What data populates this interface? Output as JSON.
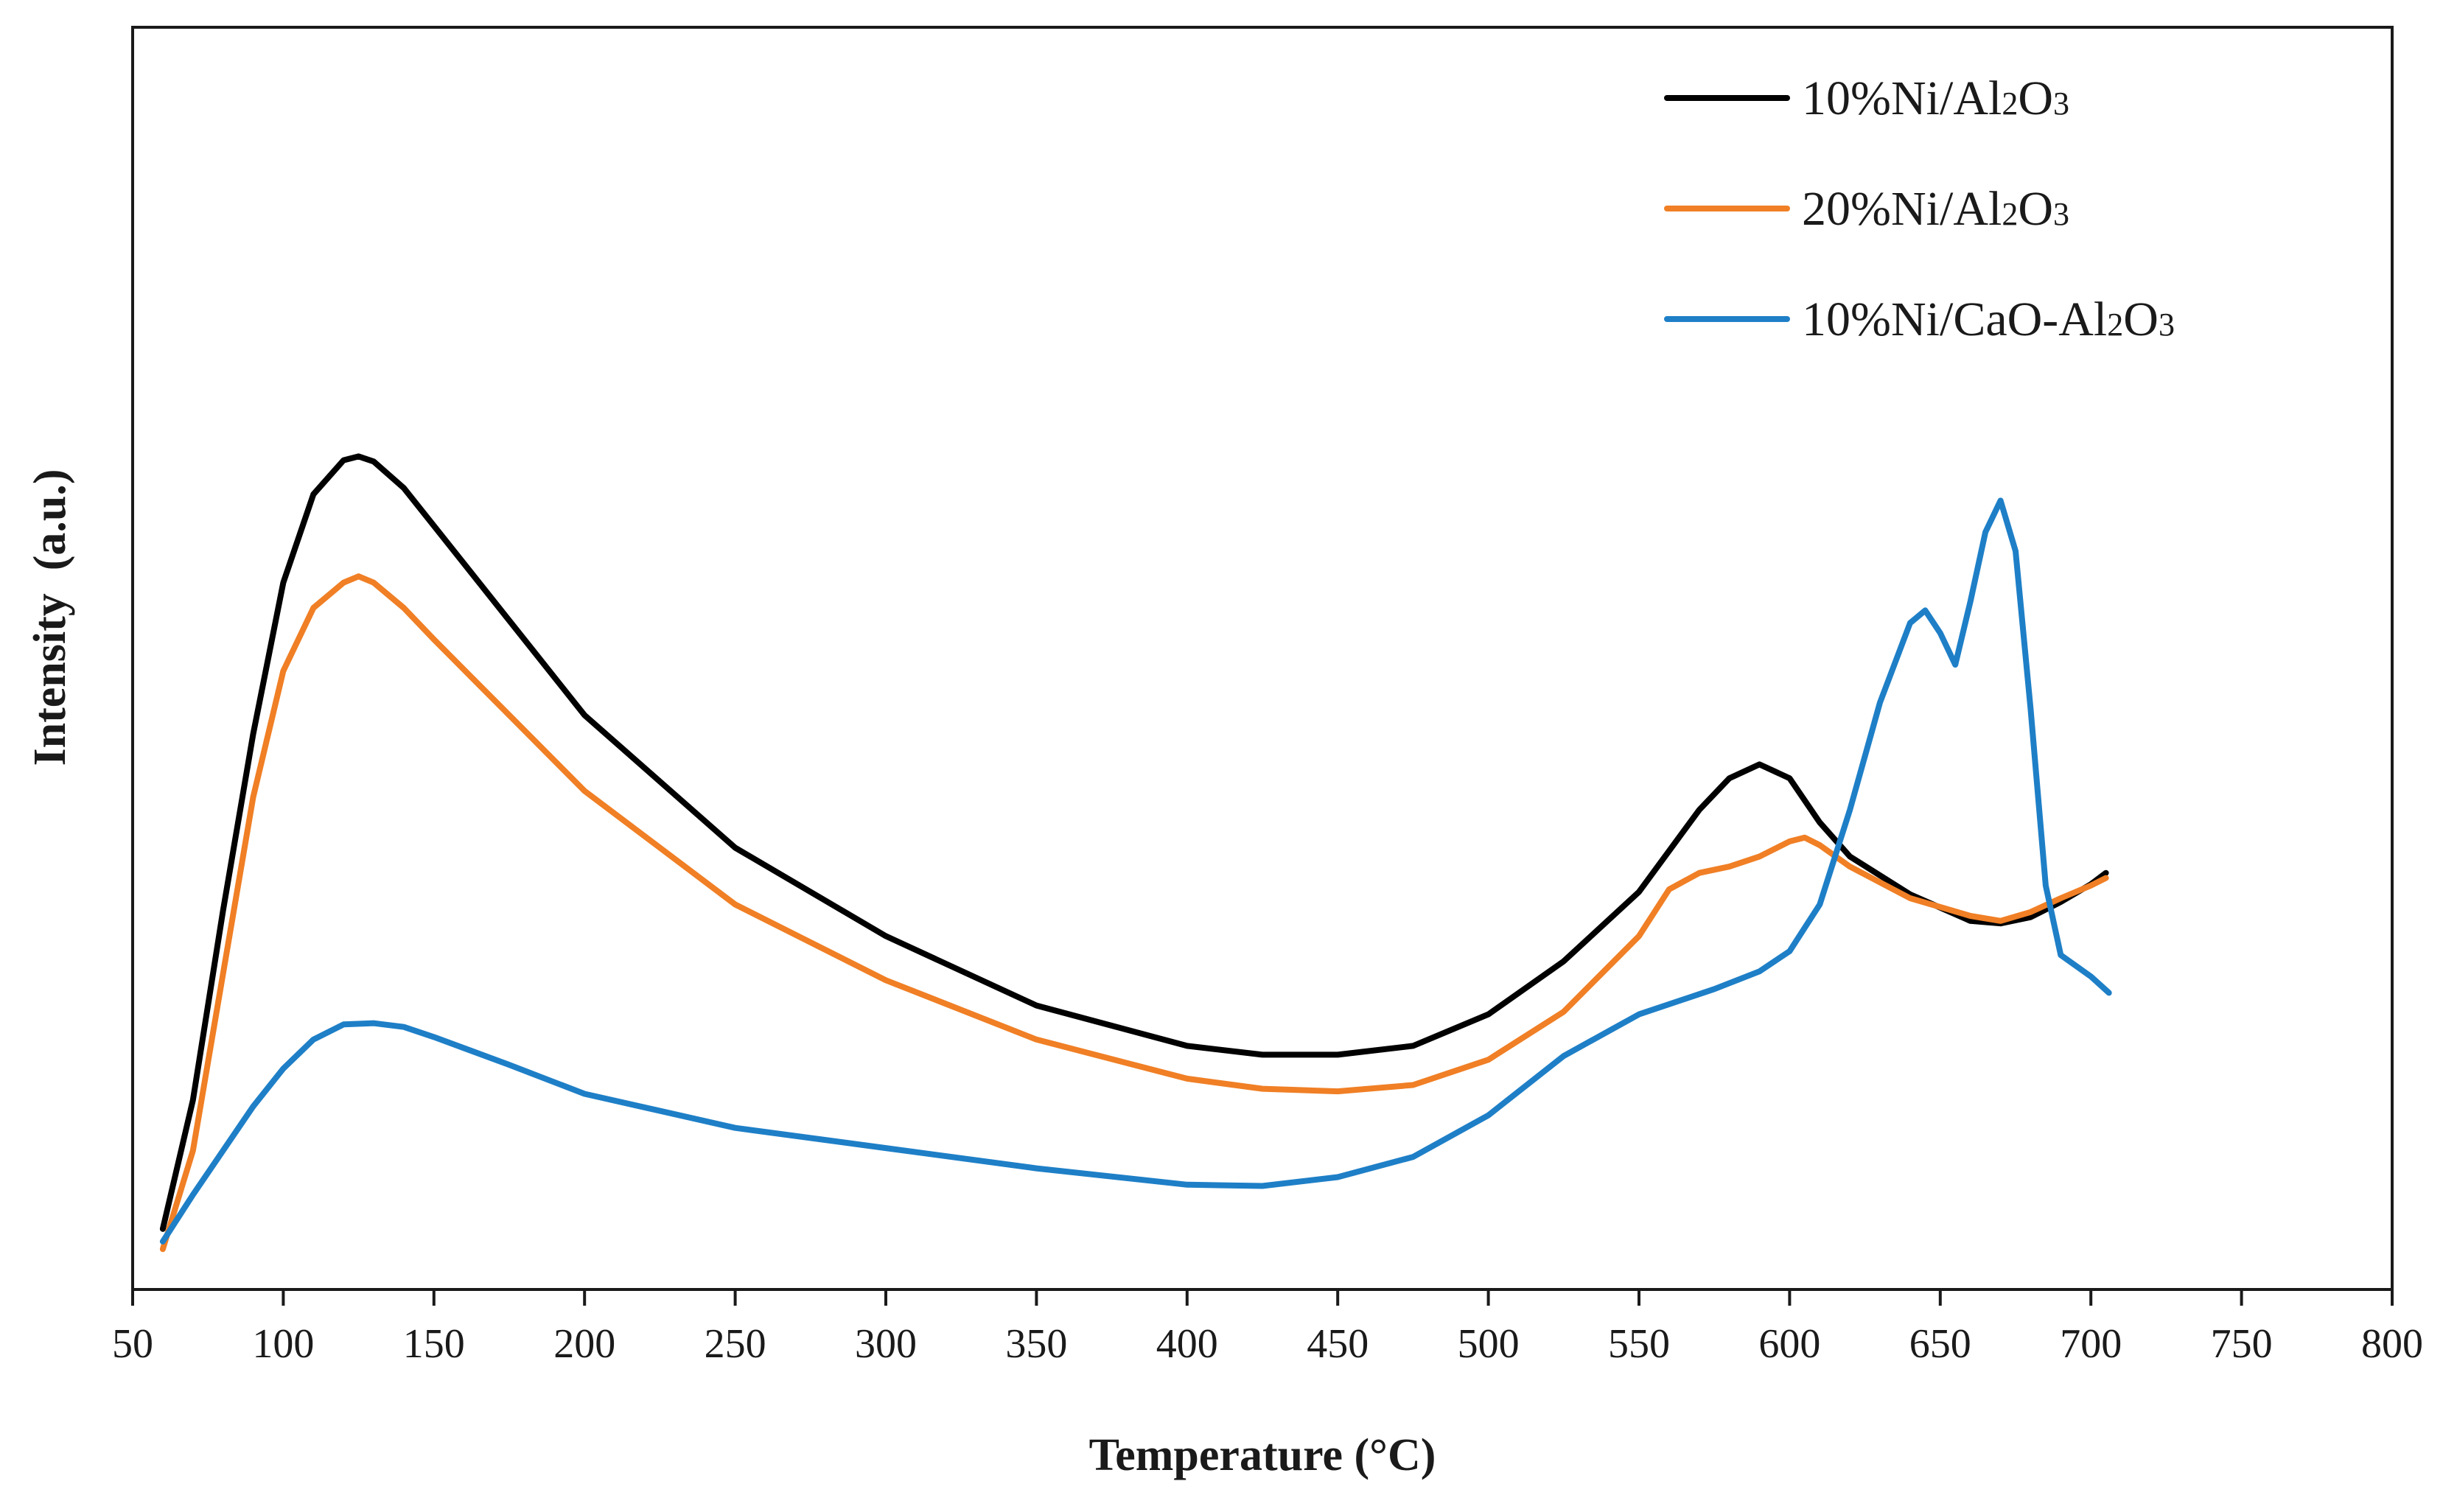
{
  "chart_data": {
    "type": "line",
    "title": "",
    "xlabel": "Temperature (°C)",
    "ylabel": "Intensity  (a.u.)",
    "xlim": [
      50,
      800
    ],
    "ylim": [
      0,
      100
    ],
    "x_ticks": [
      "50",
      "100",
      "150",
      "200",
      "250",
      "300",
      "350",
      "400",
      "450",
      "500",
      "550",
      "600",
      "650",
      "700",
      "750",
      "800"
    ],
    "y_ticks_shown": false,
    "grid": false,
    "legend_position": "top-right",
    "series": [
      {
        "name": "10%Ni/Al2O3",
        "legend": {
          "pre": "10%Ni/Al",
          "sub1": "2",
          "mid": "O",
          "sub2": "3",
          "post": ""
        },
        "color": "#000000",
        "x": [
          60,
          70,
          80,
          90,
          100,
          110,
          120,
          125,
          130,
          140,
          150,
          175,
          200,
          250,
          300,
          350,
          400,
          425,
          450,
          475,
          500,
          525,
          550,
          570,
          580,
          590,
          600,
          610,
          620,
          640,
          660,
          670,
          680,
          690,
          700,
          705
        ],
        "y": [
          4.8,
          15,
          30,
          44,
          56,
          63,
          65.7,
          66,
          65.6,
          63.5,
          60.5,
          53,
          45.5,
          35,
          28,
          22.5,
          19.3,
          18.6,
          18.6,
          19.3,
          21.8,
          26,
          31.5,
          38,
          40.5,
          41.6,
          40.5,
          37,
          34.3,
          31.3,
          29.2,
          29,
          29.5,
          30.7,
          32.1,
          33
        ]
      },
      {
        "name": "20%Ni/Al2O3",
        "legend": {
          "pre": "20%Ni/Al",
          "sub1": "2",
          "mid": "O",
          "sub2": "3",
          "post": ""
        },
        "color": "#f07f25",
        "x": [
          60,
          70,
          80,
          90,
          100,
          110,
          120,
          125,
          130,
          140,
          150,
          175,
          200,
          250,
          300,
          350,
          400,
          425,
          450,
          475,
          500,
          525,
          550,
          560,
          570,
          580,
          590,
          600,
          605,
          610,
          620,
          640,
          660,
          670,
          680,
          690,
          700,
          705
        ],
        "y": [
          3.2,
          11,
          25,
          39,
          49,
          54,
          56,
          56.5,
          56,
          54,
          51.5,
          45.5,
          39.5,
          30.5,
          24.5,
          19.8,
          16.7,
          15.9,
          15.7,
          16.2,
          18.2,
          22,
          28,
          31.7,
          33,
          33.5,
          34.3,
          35.5,
          35.8,
          35.2,
          33.5,
          31,
          29.6,
          29.2,
          29.9,
          31,
          32,
          32.6
        ]
      },
      {
        "name": "10%Ni/CaO-Al2O3",
        "legend": {
          "pre": "10%Ni/CaO-Al",
          "sub1": "2",
          "mid": "O",
          "sub2": "3",
          "post": ""
        },
        "color": "#1e7fc7",
        "x": [
          60,
          70,
          80,
          90,
          100,
          110,
          120,
          130,
          140,
          150,
          175,
          200,
          250,
          300,
          350,
          400,
          425,
          450,
          475,
          500,
          525,
          550,
          575,
          590,
          600,
          610,
          620,
          630,
          640,
          645,
          650,
          655,
          660,
          665,
          670,
          675,
          680,
          685,
          690,
          700,
          706
        ],
        "y": [
          3.8,
          7.5,
          11,
          14.5,
          17.5,
          19.8,
          21,
          21.1,
          20.8,
          20,
          17.8,
          15.5,
          12.8,
          11.2,
          9.6,
          8.3,
          8.2,
          8.9,
          10.5,
          13.8,
          18.5,
          21.8,
          23.8,
          25.2,
          26.8,
          30.5,
          38,
          46.5,
          52.8,
          53.8,
          52,
          49.5,
          54.5,
          60,
          62.5,
          58.5,
          46,
          32,
          26.5,
          24.8,
          23.5
        ]
      }
    ]
  }
}
